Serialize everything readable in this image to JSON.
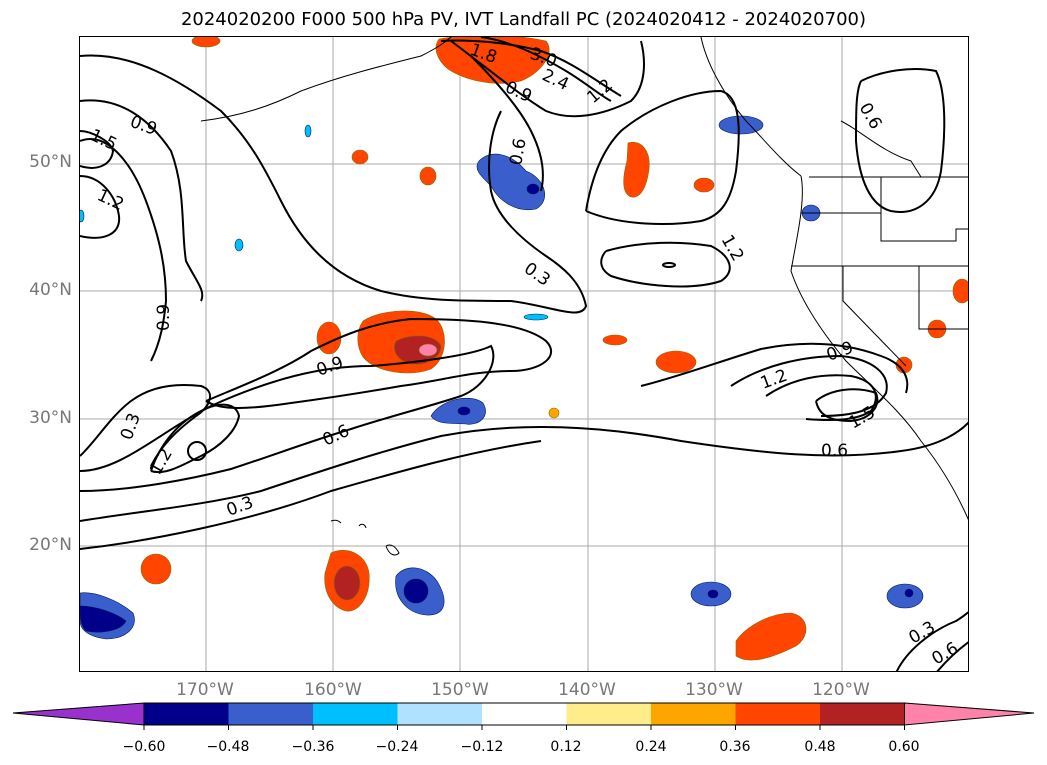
{
  "title": "2024020200 F000 500 hPa PV, IVT Landfall PC (2024020412 - 2024020700)",
  "axes": {
    "lat_labels": [
      "50°N",
      "40°N",
      "30°N",
      "20°N"
    ],
    "lon_labels": [
      "170°W",
      "160°W",
      "150°W",
      "140°W",
      "130°W",
      "120°W"
    ]
  },
  "colorbar": {
    "ticks": [
      "−0.60",
      "−0.48",
      "−0.36",
      "−0.24",
      "−0.12",
      "0.12",
      "0.24",
      "0.36",
      "0.48",
      "0.60"
    ],
    "colors": [
      "#9932cc",
      "#00008b",
      "#3a5fcd",
      "#00bfff",
      "#b0e2ff",
      "#ffffff",
      "#ffec8b",
      "#ffa500",
      "#ff4500",
      "#b22222",
      "#ff82ab"
    ]
  },
  "contour_labels": [
    "0.9",
    "1.5",
    "1.2",
    "0.9",
    "0.3",
    "1.2",
    "0.3",
    "0.6",
    "0.9",
    "0.3",
    "0.6",
    "0.9",
    "1.2",
    "0.6",
    "0.9",
    "1.2",
    "1.5",
    "0.6",
    "0.3",
    "0.6",
    "3.0",
    "2.4",
    "1.8",
    "1.2"
  ],
  "colors": {
    "contour": "#000000",
    "grid": "#aaaaaa",
    "label": "#777777"
  }
}
